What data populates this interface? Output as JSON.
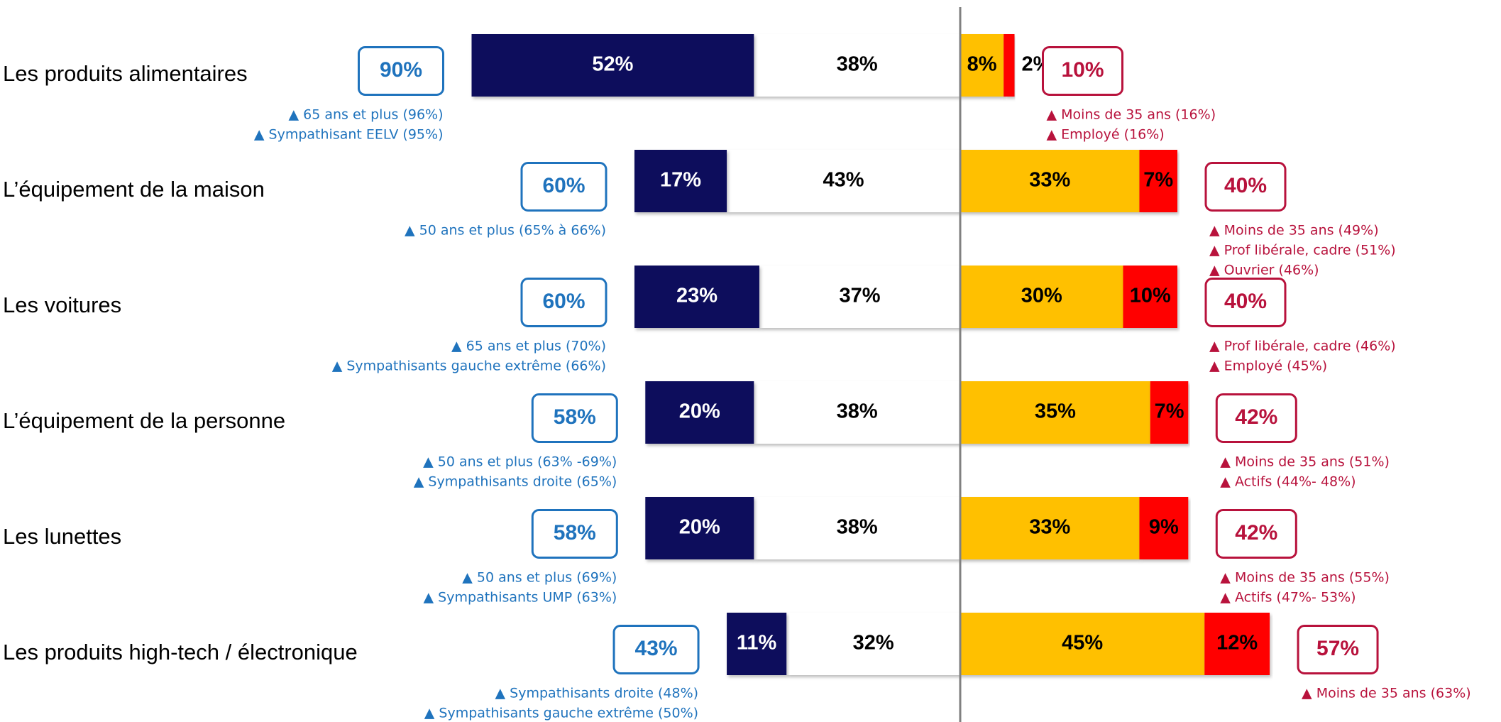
{
  "chart_data": {
    "type": "diverging_bar",
    "categories": [
      "Les produits alimentaires",
      "L’équipement de la maison",
      "Les voitures",
      "L’équipement de la personne",
      "Les lunettes",
      "Les produits  high-tech / électronique"
    ],
    "series": [
      {
        "color": "#0b0b5c",
        "side": "left",
        "values": [
          52,
          17,
          23,
          20,
          20,
          11
        ],
        "value_labels": [
          "52%",
          "17%",
          "23%",
          "20%",
          "20%",
          "11%"
        ]
      },
      {
        "color": "#ffffff",
        "side": "left",
        "values": [
          38,
          43,
          37,
          38,
          38,
          32
        ],
        "value_labels": [
          "38%",
          "43%",
          "37%",
          "38%",
          "38%",
          "32%"
        ]
      },
      {
        "color": "#ffc000",
        "side": "right",
        "values": [
          8,
          33,
          30,
          35,
          33,
          45
        ],
        "value_labels": [
          "8%",
          "33%",
          "30%",
          "35%",
          "33%",
          "45%"
        ]
      },
      {
        "color": "#ff0000",
        "side": "right",
        "values": [
          2,
          7,
          10,
          7,
          9,
          12
        ],
        "value_labels": [
          "2%",
          "7%",
          "10%",
          "7%",
          "9%",
          "12%"
        ]
      }
    ],
    "left_totals": {
      "color": "#1f73bd",
      "values": [
        90,
        60,
        60,
        58,
        58,
        43
      ],
      "value_labels": [
        "90%",
        "60%",
        "60%",
        "58%",
        "58%",
        "43%"
      ]
    },
    "right_totals": {
      "color": "#b8123c",
      "values": [
        10,
        40,
        40,
        42,
        42,
        57
      ],
      "value_labels": [
        "10%",
        "40%",
        "40%",
        "42%",
        "42%",
        "57%"
      ]
    },
    "left_notes": [
      [
        "▲ 65 ans et plus  (96%)",
        "▲ Sympathisant EELV (95%)"
      ],
      [
        "▲ 50 ans et plus  (65% à 66%)"
      ],
      [
        "▲ 65 ans et plus  (70%)",
        "▲ Sympathisants gauche extrême (66%)"
      ],
      [
        "▲ 50 ans et plus  (63% -69%)",
        "▲ Sympathisants droite (65%)"
      ],
      [
        "▲ 50 ans et plus  (69%)",
        "▲ Sympathisants UMP (63%)"
      ],
      [
        "▲ Sympathisants droite (48%)",
        "▲ Sympathisants gauche extrême (50%)"
      ]
    ],
    "right_notes": [
      [
        "▲ Moins de 35 ans (16%)",
        "▲ Employé (16%)"
      ],
      [
        "▲ Moins de 35 ans (49%)",
        "▲ Prof libérale, cadre (51%)",
        "▲ Ouvrier (46%)"
      ],
      [
        "▲ Prof libérale, cadre (46%)",
        "▲ Employé (45%)"
      ],
      [
        "▲ Moins de 35 ans (51%)",
        "▲ Actifs (44%- 48%)"
      ],
      [
        "▲ Moins de 35 ans (55%)",
        "▲ Actifs (47%- 53%)"
      ],
      [
        "▲ Moins de 35 ans (63%)"
      ]
    ]
  }
}
